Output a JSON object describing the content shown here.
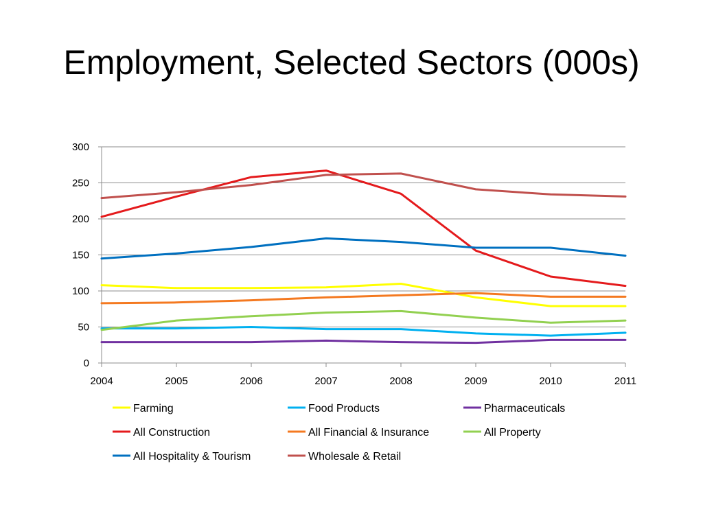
{
  "slide": {
    "title": "Employment, Selected Sectors (000s)"
  },
  "chart_data": {
    "type": "line",
    "title": "",
    "xlabel": "",
    "ylabel": "",
    "x": [
      "2004",
      "2005",
      "2006",
      "2007",
      "2008",
      "2009",
      "2010",
      "2011"
    ],
    "ylim": [
      0,
      300
    ],
    "yticks": [
      0,
      50,
      100,
      150,
      200,
      250,
      300
    ],
    "grid": true,
    "legend_position": "bottom",
    "series": [
      {
        "name": "Farming",
        "color": "#FFFF00",
        "values": [
          108,
          104,
          104,
          105,
          110,
          91,
          79,
          79
        ]
      },
      {
        "name": "Food Products",
        "color": "#00B0F0",
        "values": [
          48,
          48,
          50,
          47,
          47,
          41,
          38,
          42
        ]
      },
      {
        "name": "Pharmaceuticals",
        "color": "#7030A0",
        "values": [
          29,
          29,
          29,
          31,
          29,
          28,
          32,
          32
        ]
      },
      {
        "name": "All Construction",
        "color": "#E41A1C",
        "values": [
          203,
          231,
          258,
          267,
          235,
          156,
          120,
          107
        ]
      },
      {
        "name": "All Financial & Insurance",
        "color": "#F47920",
        "values": [
          83,
          84,
          87,
          91,
          94,
          97,
          92,
          92
        ]
      },
      {
        "name": "All Property",
        "color": "#92D050",
        "values": [
          46,
          59,
          65,
          70,
          72,
          63,
          56,
          59
        ]
      },
      {
        "name": "All Hospitality & Tourism",
        "color": "#0070C0",
        "values": [
          145,
          152,
          161,
          173,
          168,
          160,
          160,
          149
        ]
      },
      {
        "name": "Wholesale & Retail",
        "color": "#C0504D",
        "values": [
          229,
          237,
          247,
          261,
          263,
          241,
          234,
          231
        ]
      }
    ]
  }
}
